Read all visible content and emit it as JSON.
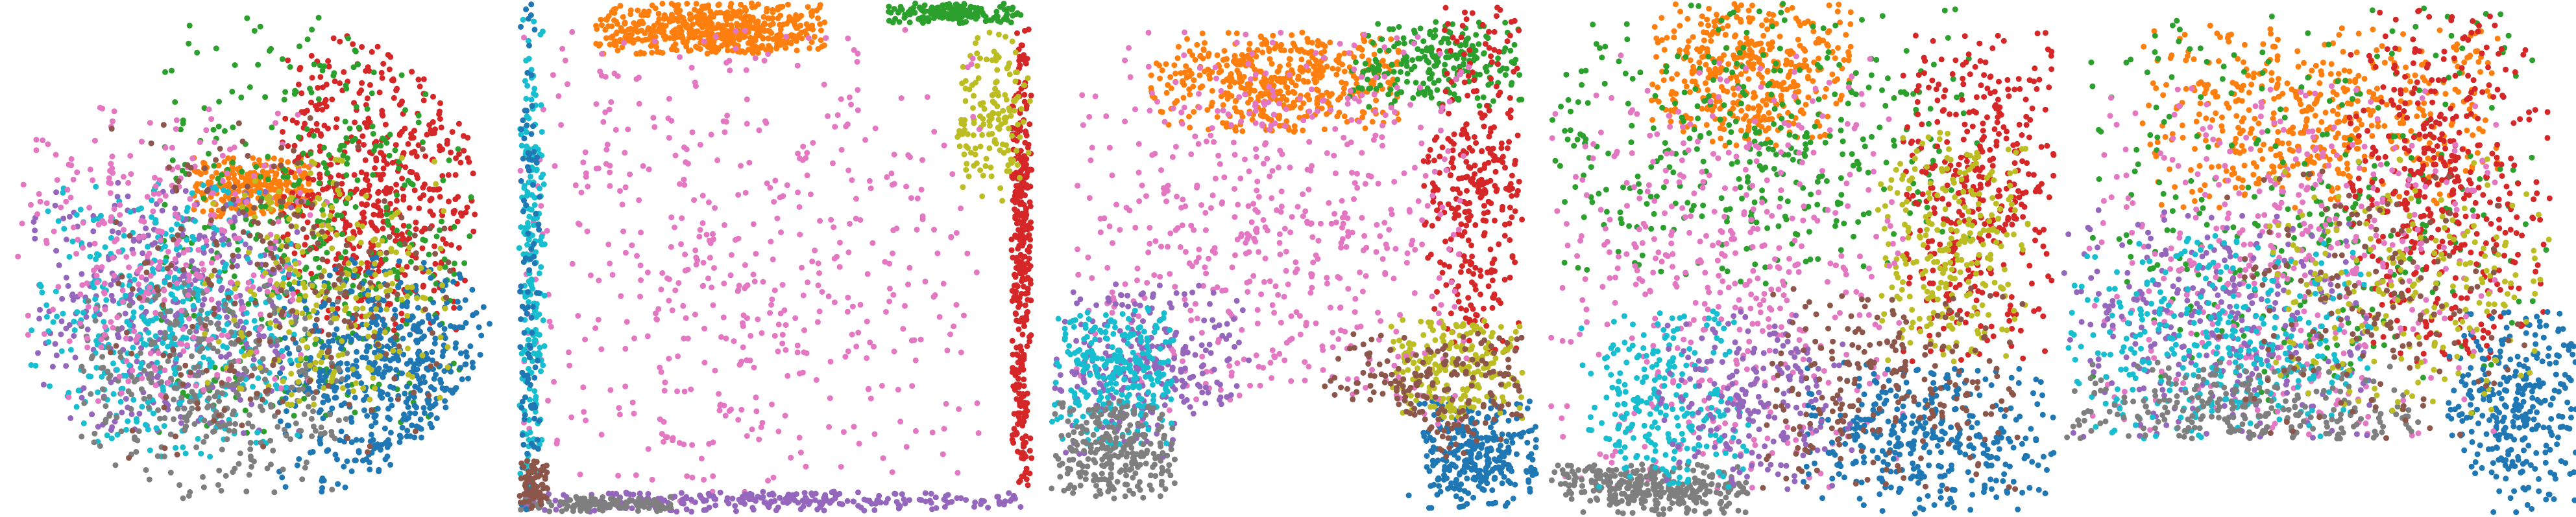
{
  "figure": {
    "n_panels": 5,
    "axes_visible": false,
    "background": "#ffffff",
    "marker_size_px": 4.5
  },
  "palette": {
    "blue": "#1f77b4",
    "orange": "#ff7f0e",
    "green": "#2ca02c",
    "red": "#d62728",
    "purple": "#9467bd",
    "brown": "#8c564b",
    "pink": "#e377c2",
    "gray": "#7f7f7f",
    "olive": "#bcbd22",
    "cyan": "#17becf"
  },
  "chart_data": [
    {
      "type": "scatter",
      "title": "",
      "xlabel": "",
      "ylabel": "",
      "grid": false,
      "legend": "none",
      "xlim": [
        0,
        1
      ],
      "ylim": [
        0,
        1
      ],
      "shape": "disk",
      "clusters": [
        {
          "color": "orange",
          "count": 260,
          "region": [
            0.38,
            0.62,
            0.3,
            0.42
          ]
        },
        {
          "color": "red",
          "count": 520,
          "region": [
            0.55,
            0.95,
            0.05,
            0.65
          ]
        },
        {
          "color": "green",
          "count": 420,
          "region": [
            0.3,
            0.95,
            0.02,
            0.85
          ]
        },
        {
          "color": "blue",
          "count": 520,
          "region": [
            0.55,
            0.98,
            0.5,
            0.98
          ]
        },
        {
          "color": "purple",
          "count": 380,
          "region": [
            0.05,
            0.6,
            0.35,
            0.85
          ]
        },
        {
          "color": "cyan",
          "count": 420,
          "region": [
            0.05,
            0.6,
            0.35,
            0.9
          ]
        },
        {
          "color": "gray",
          "count": 340,
          "region": [
            0.15,
            0.7,
            0.55,
            0.98
          ]
        },
        {
          "color": "pink",
          "count": 300,
          "region": [
            0.02,
            0.65,
            0.2,
            0.8
          ]
        },
        {
          "color": "olive",
          "count": 240,
          "region": [
            0.4,
            0.9,
            0.3,
            0.8
          ]
        },
        {
          "color": "brown",
          "count": 220,
          "region": [
            0.2,
            0.9,
            0.2,
            0.9
          ]
        }
      ]
    },
    {
      "type": "scatter",
      "title": "",
      "xlabel": "",
      "ylabel": "",
      "grid": false,
      "legend": "none",
      "xlim": [
        0,
        1
      ],
      "ylim": [
        0,
        1
      ],
      "shape": "square-frame",
      "clusters": [
        {
          "color": "orange",
          "count": 520,
          "region": [
            0.15,
            0.6,
            0.0,
            0.1
          ]
        },
        {
          "color": "green",
          "count": 160,
          "region": [
            0.72,
            0.98,
            0.0,
            0.04
          ]
        },
        {
          "color": "red",
          "count": 360,
          "region": [
            0.96,
            1.0,
            0.05,
            0.95
          ]
        },
        {
          "color": "olive",
          "count": 150,
          "region": [
            0.85,
            1.0,
            0.05,
            0.4
          ]
        },
        {
          "color": "pink",
          "count": 520,
          "region": [
            0.0,
            0.9,
            0.05,
            0.98
          ]
        },
        {
          "color": "purple",
          "count": 260,
          "region": [
            0.0,
            1.0,
            0.96,
            1.0
          ]
        },
        {
          "color": "cyan",
          "count": 200,
          "region": [
            0.0,
            0.05,
            0.0,
            1.0
          ]
        },
        {
          "color": "gray",
          "count": 120,
          "region": [
            0.0,
            0.3,
            0.97,
            1.0
          ]
        },
        {
          "color": "blue",
          "count": 100,
          "region": [
            0.0,
            0.04,
            0.0,
            1.0
          ]
        },
        {
          "color": "brown",
          "count": 80,
          "region": [
            0.0,
            0.06,
            0.9,
            1.0
          ]
        }
      ]
    },
    {
      "type": "scatter",
      "title": "",
      "xlabel": "",
      "ylabel": "",
      "grid": false,
      "legend": "none",
      "xlim": [
        0,
        1
      ],
      "ylim": [
        0,
        1
      ],
      "shape": "pinched-square",
      "clusters": [
        {
          "color": "orange",
          "count": 480,
          "region": [
            0.2,
            0.7,
            0.05,
            0.25
          ]
        },
        {
          "color": "green",
          "count": 240,
          "region": [
            0.6,
            0.95,
            0.03,
            0.2
          ]
        },
        {
          "color": "red",
          "count": 320,
          "region": [
            0.75,
            0.95,
            0.0,
            0.7
          ]
        },
        {
          "color": "blue",
          "count": 300,
          "region": [
            0.72,
            0.98,
            0.78,
            1.0
          ]
        },
        {
          "color": "olive",
          "count": 220,
          "region": [
            0.68,
            0.95,
            0.62,
            0.82
          ]
        },
        {
          "color": "pink",
          "count": 560,
          "region": [
            0.05,
            0.85,
            0.05,
            0.85
          ]
        },
        {
          "color": "purple",
          "count": 260,
          "region": [
            0.0,
            0.4,
            0.55,
            0.9
          ]
        },
        {
          "color": "cyan",
          "count": 280,
          "region": [
            0.0,
            0.25,
            0.6,
            0.88
          ]
        },
        {
          "color": "gray",
          "count": 260,
          "region": [
            0.0,
            0.25,
            0.78,
            0.98
          ]
        },
        {
          "color": "brown",
          "count": 180,
          "region": [
            0.55,
            0.95,
            0.65,
            0.9
          ]
        }
      ]
    },
    {
      "type": "scatter",
      "title": "",
      "xlabel": "",
      "ylabel": "",
      "grid": false,
      "legend": "none",
      "xlim": [
        0,
        1
      ],
      "ylim": [
        0,
        1
      ],
      "shape": "rounded-square-with-lobes",
      "clusters": [
        {
          "color": "orange",
          "count": 420,
          "region": [
            0.2,
            0.6,
            0.0,
            0.28
          ]
        },
        {
          "color": "green",
          "count": 380,
          "region": [
            0.0,
            0.85,
            0.0,
            0.55
          ]
        },
        {
          "color": "red",
          "count": 380,
          "region": [
            0.7,
            1.0,
            0.05,
            0.7
          ]
        },
        {
          "color": "olive",
          "count": 260,
          "region": [
            0.65,
            0.95,
            0.25,
            0.7
          ]
        },
        {
          "color": "pink",
          "count": 460,
          "region": [
            0.0,
            0.7,
            0.1,
            0.95
          ]
        },
        {
          "color": "gray",
          "count": 320,
          "region": [
            0.0,
            0.4,
            0.9,
            1.0
          ]
        },
        {
          "color": "cyan",
          "count": 240,
          "region": [
            0.05,
            0.4,
            0.6,
            0.95
          ]
        },
        {
          "color": "blue",
          "count": 360,
          "region": [
            0.5,
            1.0,
            0.7,
            1.0
          ]
        },
        {
          "color": "purple",
          "count": 200,
          "region": [
            0.2,
            0.6,
            0.6,
            0.95
          ]
        },
        {
          "color": "brown",
          "count": 240,
          "region": [
            0.4,
            0.95,
            0.55,
            0.95
          ]
        }
      ]
    },
    {
      "type": "scatter",
      "title": "",
      "xlabel": "",
      "ylabel": "",
      "grid": false,
      "legend": "none",
      "xlim": [
        0,
        1
      ],
      "ylim": [
        0,
        1
      ],
      "shape": "trapezoid",
      "clusters": [
        {
          "color": "orange",
          "count": 500,
          "region": [
            0.15,
            0.85,
            0.03,
            0.4
          ]
        },
        {
          "color": "green",
          "count": 320,
          "region": [
            0.05,
            0.95,
            0.0,
            0.8
          ]
        },
        {
          "color": "red",
          "count": 420,
          "region": [
            0.55,
            0.95,
            0.0,
            0.7
          ]
        },
        {
          "color": "blue",
          "count": 300,
          "region": [
            0.75,
            1.0,
            0.6,
            1.0
          ]
        },
        {
          "color": "pink",
          "count": 420,
          "region": [
            0.05,
            0.85,
            0.15,
            0.85
          ]
        },
        {
          "color": "purple",
          "count": 300,
          "region": [
            0.0,
            0.6,
            0.4,
            0.88
          ]
        },
        {
          "color": "cyan",
          "count": 340,
          "region": [
            0.0,
            0.6,
            0.45,
            0.88
          ]
        },
        {
          "color": "gray",
          "count": 260,
          "region": [
            0.0,
            0.7,
            0.7,
            0.9
          ]
        },
        {
          "color": "olive",
          "count": 220,
          "region": [
            0.4,
            0.95,
            0.3,
            0.8
          ]
        },
        {
          "color": "brown",
          "count": 160,
          "region": [
            0.3,
            0.9,
            0.3,
            0.85
          ]
        }
      ]
    }
  ]
}
